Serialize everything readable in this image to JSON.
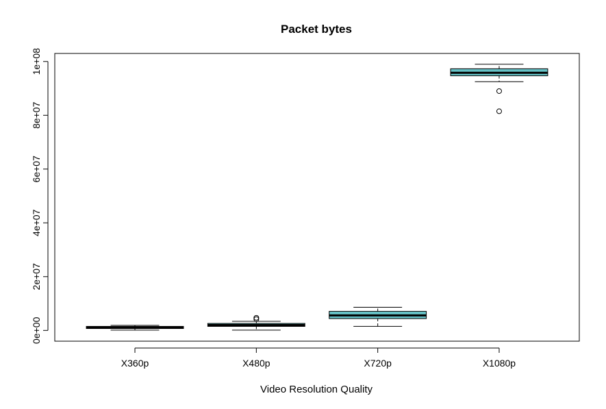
{
  "chart_data": {
    "type": "box",
    "title": "Packet bytes",
    "xlabel": "Video Resolution Quality",
    "ylabel": "",
    "ylim": [
      -4000000,
      103000000
    ],
    "yticks": [
      {
        "value": 0,
        "label": "0e+00"
      },
      {
        "value": 20000000,
        "label": "2e+07"
      },
      {
        "value": 40000000,
        "label": "4e+07"
      },
      {
        "value": 60000000,
        "label": "6e+07"
      },
      {
        "value": 80000000,
        "label": "8e+07"
      },
      {
        "value": 100000000,
        "label": "1e+08"
      }
    ],
    "box_color": "#66c2c6",
    "categories": [
      "X360p",
      "X480p",
      "X720p",
      "X1080p"
    ],
    "boxes": [
      {
        "name": "X360p",
        "whisker_low": 100000,
        "q1": 700000,
        "median": 1100000,
        "q3": 1500000,
        "whisker_high": 1900000,
        "outliers": []
      },
      {
        "name": "X480p",
        "whisker_low": 100000,
        "q1": 1500000,
        "median": 2000000,
        "q3": 2600000,
        "whisker_high": 3400000,
        "outliers": [
          4200000,
          4700000
        ]
      },
      {
        "name": "X720p",
        "whisker_low": 1500000,
        "q1": 4400000,
        "median": 5600000,
        "q3": 7100000,
        "whisker_high": 8600000,
        "outliers": []
      },
      {
        "name": "X1080p",
        "whisker_low": 92500000,
        "q1": 94700000,
        "median": 95800000,
        "q3": 97300000,
        "whisker_high": 99000000,
        "outliers": [
          89000000,
          81500000
        ]
      }
    ]
  }
}
